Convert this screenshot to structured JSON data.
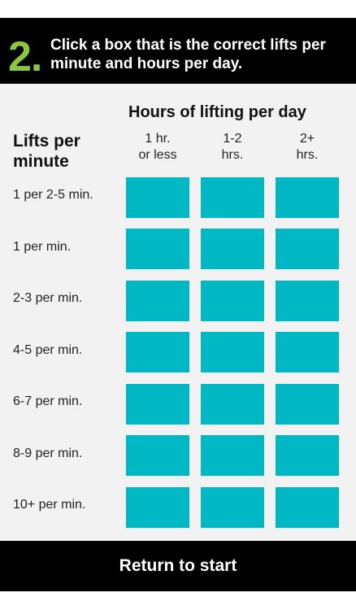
{
  "header": {
    "step_number": "2.",
    "instruction": "Click a box that is the correct lifts per minute and hours per day."
  },
  "table": {
    "column_title": "Hours of lifting per day",
    "row_title": "Lifts per minute",
    "columns": [
      {
        "line1": "1 hr.",
        "line2": "or less"
      },
      {
        "line1": "1-2",
        "line2": "hrs."
      },
      {
        "line1": "2+",
        "line2": "hrs."
      }
    ],
    "rows": [
      "1 per 2-5 min.",
      "1 per min.",
      "2-3 per min.",
      "4-5 per min.",
      "6-7 per min.",
      "8-9 per min.",
      "10+ per min."
    ]
  },
  "footer": {
    "return_label": "Return to start"
  },
  "colors": {
    "accent_green": "#8cc63f",
    "cell_teal": "#00b7c4",
    "header_bg": "#000000",
    "content_bg": "#f2f2f2"
  }
}
